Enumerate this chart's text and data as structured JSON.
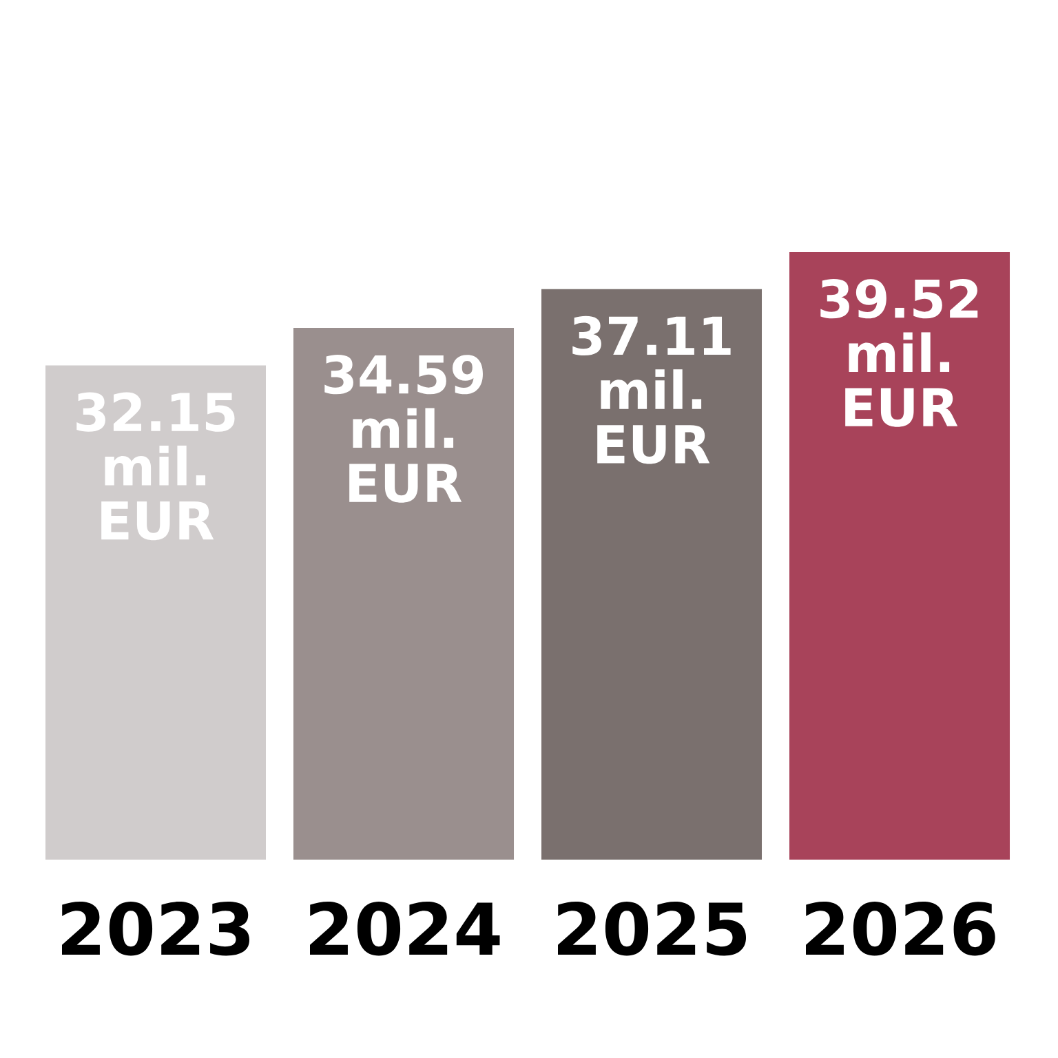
{
  "chart_data": {
    "type": "bar",
    "categories": [
      "2023",
      "2024",
      "2025",
      "2026"
    ],
    "values": [
      32.15,
      34.59,
      37.11,
      39.52
    ],
    "colors": [
      "#d0cccc",
      "#9a8f8e",
      "#7a706e",
      "#a8435a"
    ],
    "value_labels": [
      "32.15 mil. EUR",
      "34.59 mil. EUR",
      "37.11 mil. EUR",
      "39.52 mil. EUR"
    ]
  }
}
